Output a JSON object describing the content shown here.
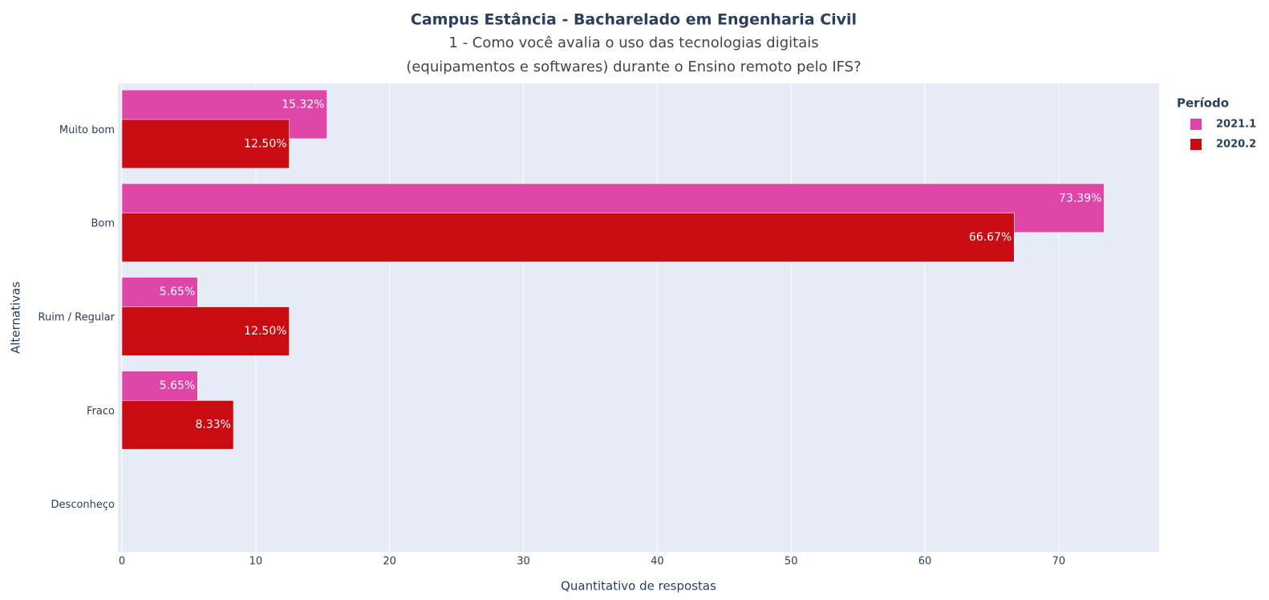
{
  "chart_data": {
    "type": "bar",
    "orientation": "horizontal",
    "title": "Campus Estância - Bacharelado em Engenharia Civil",
    "subtitle": [
      "1 - Como você avalia o uso das tecnologias digitais",
      "(equipamentos e softwares) durante o Ensino remoto pelo IFS?"
    ],
    "x_label": "Quantitativo de respostas",
    "y_label": "Alternativas",
    "legend_title": "Período",
    "legend_position": "right",
    "categories": [
      "Muito bom",
      "Bom",
      "Ruim / Regular",
      "Fraco",
      "Desconheço"
    ],
    "series": [
      {
        "name": "2021.1",
        "color": "#e046a8",
        "values": [
          15.32,
          73.39,
          5.65,
          5.65,
          0
        ],
        "value_labels": [
          "15.32%",
          "73.39%",
          "5.65%",
          "5.65%",
          null
        ]
      },
      {
        "name": "2020.2",
        "color": "#c90c12",
        "values": [
          12.5,
          66.67,
          12.5,
          8.33,
          0
        ],
        "value_labels": [
          "12.50%",
          "66.67%",
          "12.50%",
          "8.33%",
          null
        ]
      }
    ],
    "xlim": [
      -0.3,
      77.5
    ],
    "xticks": [
      0,
      10,
      20,
      30,
      40,
      50,
      60,
      70
    ],
    "grid": true
  }
}
